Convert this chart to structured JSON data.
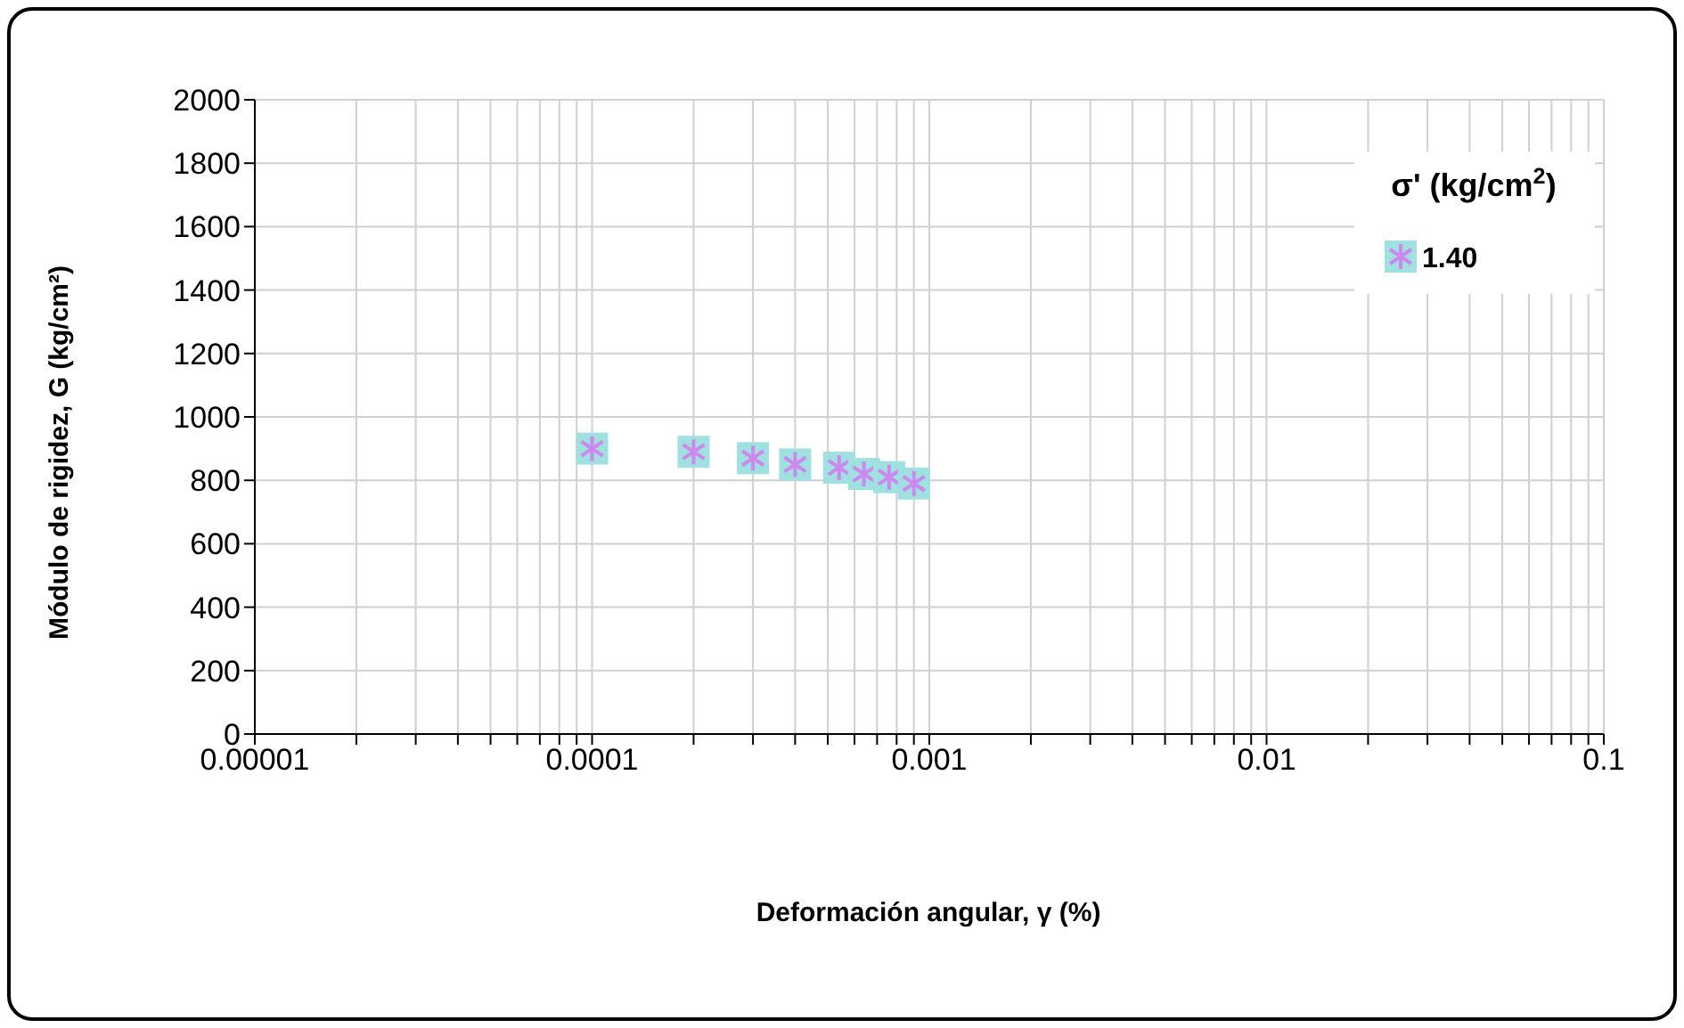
{
  "chart_data": {
    "type": "scatter",
    "xlabel": "Deformación angular, γ  (%)",
    "ylabel": "Módulo de rigidez, G (kg/cm²)",
    "legend_title": "σ' (kg/cm$^{2}$)",
    "series": [
      {
        "name": "1.40",
        "color": "#a0e0e0",
        "values": [
          900,
          890,
          870,
          850,
          840,
          820,
          810,
          790
        ],
        "x": [
          0.0001,
          0.0002,
          0.0003,
          0.0004,
          0.00054,
          0.00064,
          0.00076,
          0.0009
        ]
      }
    ],
    "log": "x",
    "xlim": [
      1e-05,
      0.1
    ],
    "ylim": [
      0,
      2000
    ],
    "xticks": [
      {
        "value": 1e-05,
        "label": "0.00001"
      },
      {
        "value": 2e-05,
        "label": null
      },
      {
        "value": 3e-05,
        "label": null
      },
      {
        "value": 4e-05,
        "label": null
      },
      {
        "value": 5e-05,
        "label": null
      },
      {
        "value": 6e-05,
        "label": null
      },
      {
        "value": 7e-05,
        "label": null
      },
      {
        "value": 8e-05,
        "label": null
      },
      {
        "value": 9e-05,
        "label": null
      },
      0.0001,
      {
        "value": 0.0002,
        "label": null
      },
      {
        "value": 0.0003,
        "label": null
      },
      {
        "value": 0.0004,
        "label": null
      },
      {
        "value": 0.0005,
        "label": null
      },
      {
        "value": 0.0006,
        "label": null
      },
      {
        "value": 0.0007,
        "label": null
      },
      {
        "value": 0.0008,
        "label": null
      },
      {
        "value": 0.0009,
        "label": null
      },
      0.001,
      {
        "value": 0.002,
        "label": null
      },
      {
        "value": 0.003,
        "label": null
      },
      {
        "value": 0.004,
        "label": null
      },
      {
        "value": 0.005,
        "label": null
      },
      {
        "value": 0.006,
        "label": null
      },
      {
        "value": 0.007,
        "label": null
      },
      {
        "value": 0.008,
        "label": null
      },
      {
        "value": 0.009,
        "label": null
      },
      0.01,
      {
        "value": 0.02,
        "label": null
      },
      {
        "value": 0.03,
        "label": null
      },
      {
        "value": 0.04,
        "label": null
      },
      {
        "value": 0.05,
        "label": null
      },
      {
        "value": 0.06,
        "label": null
      },
      {
        "value": 0.07,
        "label": null
      },
      {
        "value": 0.08,
        "label": null
      },
      {
        "value": 0.09,
        "label": null
      },
      0.1
    ],
    "yticks": [
      0,
      200,
      400,
      600,
      800,
      1000,
      1200,
      1400,
      1600,
      1800,
      2000
    ],
    "grid": true,
    "legend": "top right",
    "marker": "square"
  }
}
